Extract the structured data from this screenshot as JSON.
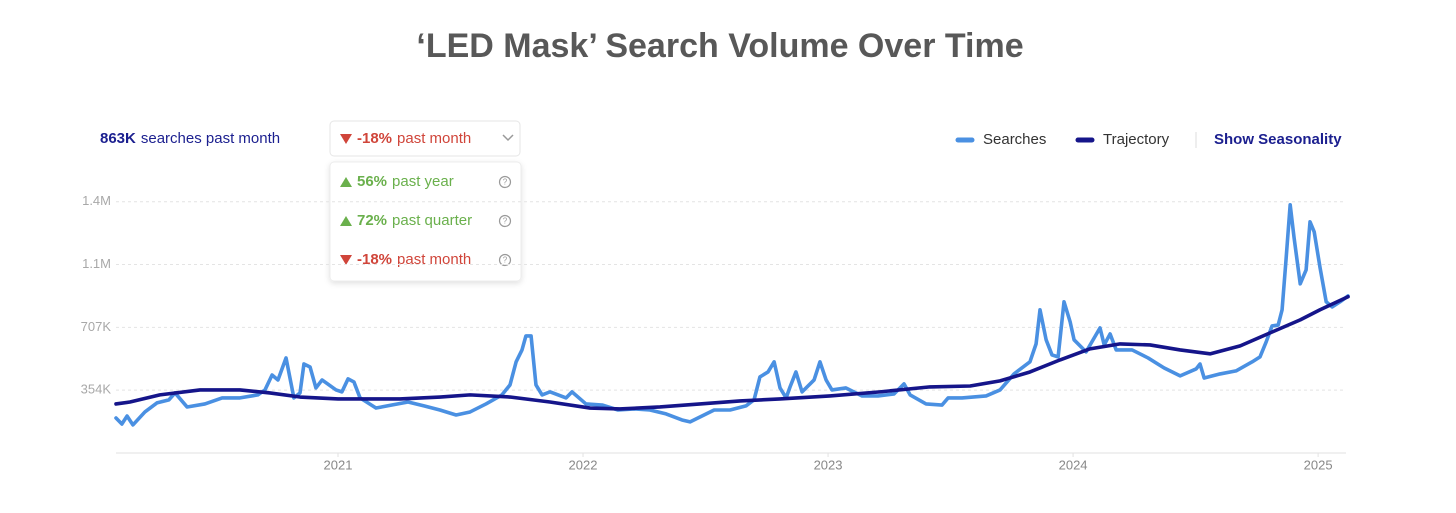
{
  "header": {
    "searches_value": "863K",
    "searches_label": "searches past month",
    "selected": {
      "change": "-18%",
      "period": "past month"
    },
    "options": [
      {
        "change": "56%",
        "period": "past year"
      },
      {
        "change": "72%",
        "period": "past quarter"
      },
      {
        "change": "-18%",
        "period": "past month"
      }
    ],
    "legend_action": "Show Seasonality"
  },
  "chart_data": {
    "type": "line",
    "title": "‘LED Mask’ Search Volume Over Time",
    "xlim": [
      2020.094,
      2025.122
    ],
    "xticks": [
      2021,
      2022,
      2023,
      2024,
      2025
    ],
    "ylim": [
      0,
      1480000
    ],
    "yticks": [
      {
        "value": 353500,
        "label": "354K"
      },
      {
        "value": 707000,
        "label": "707K"
      },
      {
        "value": 1060500,
        "label": "1.1M"
      },
      {
        "value": 1414000,
        "label": "1.4M"
      }
    ],
    "grid": true,
    "legend": "top-right",
    "series": [
      {
        "name": "Searches",
        "color": "#4a90e2",
        "x": [
          2020.094,
          2020.118,
          2020.139,
          2020.163,
          2020.212,
          2020.261,
          2020.31,
          2020.335,
          2020.384,
          2020.457,
          2020.527,
          2020.6,
          2020.673,
          2020.702,
          2020.731,
          2020.755,
          2020.788,
          2020.804,
          2020.82,
          2020.845,
          2020.861,
          2020.886,
          2020.91,
          2020.935,
          2020.992,
          2021.016,
          2021.041,
          2021.065,
          2021.09,
          2021.155,
          2021.22,
          2021.286,
          2021.351,
          2021.416,
          2021.482,
          2021.539,
          2021.604,
          2021.669,
          2021.702,
          2021.727,
          2021.751,
          2021.767,
          2021.788,
          2021.808,
          2021.833,
          2021.865,
          2021.931,
          2021.955,
          2022.012,
          2022.078,
          2022.143,
          2022.208,
          2022.273,
          2022.339,
          2022.404,
          2022.437,
          2022.469,
          2022.535,
          2022.6,
          2022.665,
          2022.698,
          2022.722,
          2022.755,
          2022.78,
          2022.804,
          2022.829,
          2022.845,
          2022.869,
          2022.894,
          2022.943,
          2022.967,
          2022.992,
          2023.016,
          2023.073,
          2023.139,
          2023.204,
          2023.269,
          2023.31,
          2023.335,
          2023.4,
          2023.465,
          2023.49,
          2023.547,
          2023.645,
          2023.702,
          2023.759,
          2023.824,
          2023.849,
          2023.865,
          2023.89,
          2023.914,
          2023.939,
          2023.963,
          2023.988,
          2024.004,
          2024.053,
          2024.11,
          2024.127,
          2024.151,
          2024.176,
          2024.241,
          2024.306,
          2024.371,
          2024.437,
          2024.502,
          2024.518,
          2024.535,
          2024.6,
          2024.665,
          2024.731,
          2024.763,
          2024.788,
          2024.812,
          2024.837,
          2024.853,
          2024.869,
          2024.886,
          2024.902,
          2024.927,
          2024.951,
          2024.967,
          2024.984,
          2025.008,
          2025.033,
          2025.057,
          2025.09,
          2025.122
        ],
        "values": [
          197000,
          163000,
          208000,
          158000,
          231000,
          282000,
          299000,
          338000,
          259000,
          276000,
          310000,
          310000,
          327000,
          355000,
          439000,
          411000,
          535000,
          422000,
          310000,
          338000,
          501000,
          484000,
          366000,
          411000,
          355000,
          344000,
          417000,
          400000,
          310000,
          253000,
          270000,
          287000,
          265000,
          242000,
          214000,
          231000,
          276000,
          327000,
          383000,
          513000,
          580000,
          659000,
          659000,
          383000,
          327000,
          344000,
          310000,
          344000,
          276000,
          270000,
          242000,
          248000,
          242000,
          220000,
          186000,
          175000,
          197000,
          242000,
          242000,
          265000,
          299000,
          428000,
          456000,
          513000,
          366000,
          310000,
          372000,
          456000,
          344000,
          411000,
          513000,
          411000,
          355000,
          366000,
          321000,
          321000,
          332000,
          389000,
          327000,
          276000,
          270000,
          310000,
          310000,
          321000,
          355000,
          445000,
          513000,
          614000,
          806000,
          637000,
          552000,
          541000,
          851000,
          738000,
          637000,
          569000,
          704000,
          608000,
          670000,
          580000,
          580000,
          535000,
          479000,
          434000,
          473000,
          501000,
          422000,
          445000,
          462000,
          513000,
          541000,
          625000,
          715000,
          720000,
          806000,
          1087000,
          1397000,
          1211000,
          952000,
          1030000,
          1301000,
          1245000,
          1042000,
          851000,
          822000,
          851000,
          884000
        ]
      },
      {
        "name": "Trajectory",
        "color": "#15158a",
        "x": [
          2020.094,
          2020.151,
          2020.273,
          2020.437,
          2020.6,
          2020.722,
          2020.845,
          2021.0,
          2021.253,
          2021.416,
          2021.539,
          2021.702,
          2021.865,
          2022.029,
          2022.151,
          2022.314,
          2022.478,
          2022.641,
          2022.804,
          2023.008,
          2023.212,
          2023.416,
          2023.58,
          2023.702,
          2023.824,
          2023.947,
          2024.069,
          2024.192,
          2024.314,
          2024.437,
          2024.559,
          2024.682,
          2024.804,
          2024.927,
          2025.008,
          2025.122
        ],
        "values": [
          276000,
          287000,
          327000,
          355000,
          355000,
          338000,
          315000,
          304000,
          304000,
          315000,
          327000,
          315000,
          287000,
          253000,
          248000,
          259000,
          276000,
          293000,
          304000,
          321000,
          344000,
          372000,
          377000,
          406000,
          456000,
          524000,
          586000,
          614000,
          608000,
          580000,
          558000,
          603000,
          676000,
          749000,
          806000,
          879000
        ]
      }
    ]
  }
}
